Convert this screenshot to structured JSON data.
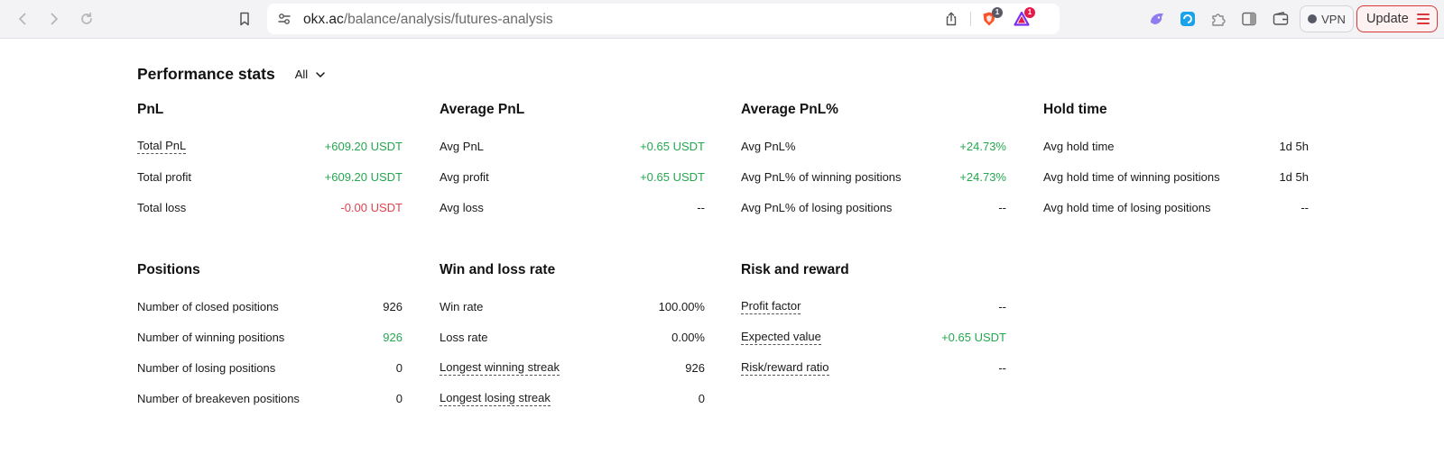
{
  "browser": {
    "url_host": "okx.ac",
    "url_path": "/balance/analysis/futures-analysis",
    "icons": [
      "back-arrow-icon",
      "forward-arrow-icon",
      "reload-icon",
      "bookmark-icon",
      "site-settings-icon",
      "share-icon",
      "brave-shield-icon",
      "brave-rewards-icon",
      "leo-ai-icon",
      "extension-blue-icon",
      "puzzle-extensions-icon",
      "sidebar-icon",
      "wallet-icon",
      "hamburger-menu-icon"
    ],
    "shield_badge": "1",
    "rewards_badge": "1",
    "vpn_label": "VPN",
    "update_label": "Update",
    "colors": {
      "update_border": "#d9383a",
      "shield": "#fb542b",
      "rewards": "#e6194b"
    }
  },
  "page": {
    "title": "Performance stats",
    "filter": {
      "selected": "All"
    }
  },
  "colors": {
    "positive": "#25a750",
    "negative": "#e0424e"
  },
  "sections": {
    "pnl": {
      "title": "PnL",
      "rows": [
        {
          "label": "Total PnL",
          "value": "+609.20 USDT"
        },
        {
          "label": "Total profit",
          "value": "+609.20 USDT"
        },
        {
          "label": "Total loss",
          "value": "-0.00 USDT"
        }
      ]
    },
    "avg_pnl": {
      "title": "Average PnL",
      "rows": [
        {
          "label": "Avg PnL",
          "value": "+0.65 USDT"
        },
        {
          "label": "Avg profit",
          "value": "+0.65 USDT"
        },
        {
          "label": "Avg loss",
          "value": "--"
        }
      ]
    },
    "avg_pnl_pct": {
      "title": "Average PnL%",
      "rows": [
        {
          "label": "Avg PnL%",
          "value": "+24.73%"
        },
        {
          "label": "Avg PnL% of winning positions",
          "value": "+24.73%"
        },
        {
          "label": "Avg PnL% of losing positions",
          "value": "--"
        }
      ]
    },
    "hold_time": {
      "title": "Hold time",
      "rows": [
        {
          "label": "Avg hold time",
          "value": "1d 5h"
        },
        {
          "label": "Avg hold time of winning positions",
          "value": "1d 5h"
        },
        {
          "label": "Avg hold time of losing positions",
          "value": "--"
        }
      ]
    },
    "positions": {
      "title": "Positions",
      "rows": [
        {
          "label": "Number of closed positions",
          "value": "926"
        },
        {
          "label": "Number of winning positions",
          "value": "926"
        },
        {
          "label": "Number of losing positions",
          "value": "0"
        },
        {
          "label": "Number of breakeven positions",
          "value": "0"
        }
      ]
    },
    "win_loss": {
      "title": "Win and loss rate",
      "rows": [
        {
          "label": "Win rate",
          "value": "100.00%"
        },
        {
          "label": "Loss rate",
          "value": "0.00%"
        },
        {
          "label": "Longest winning streak",
          "value": "926"
        },
        {
          "label": "Longest losing streak",
          "value": "0"
        }
      ]
    },
    "risk_reward": {
      "title": "Risk and reward",
      "rows": [
        {
          "label": "Profit factor",
          "value": "--"
        },
        {
          "label": "Expected value",
          "value": "+0.65 USDT"
        },
        {
          "label": "Risk/reward ratio",
          "value": "--"
        }
      ]
    }
  }
}
